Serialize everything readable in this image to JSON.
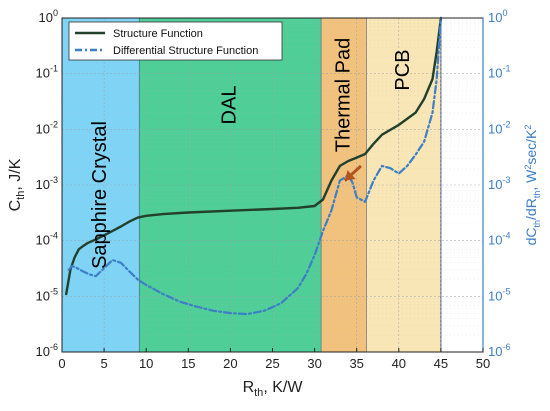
{
  "chart_data": {
    "type": "line",
    "xlabel_main": "R",
    "xlabel_sub": "th",
    "xlabel_rest": ", K/W",
    "ylabel_left_main": "C",
    "ylabel_left_sub": "th",
    "ylabel_left_rest": ", J/K",
    "ylabel_right_text": "dC_th/dR_th, W^2sec/K^2",
    "ylabel_right_parts": [
      "dC",
      "th",
      "/dR",
      "th",
      ", W",
      "2",
      "sec/K",
      "2"
    ],
    "xlim": [
      0,
      50
    ],
    "ylim_log": [
      -6,
      0
    ],
    "x_ticks": [
      "0",
      "5",
      "10",
      "15",
      "20",
      "25",
      "30",
      "35",
      "40",
      "45",
      "50"
    ],
    "y_ticks": [
      {
        "base": "10",
        "exp": "0"
      },
      {
        "base": "10",
        "exp": "-1"
      },
      {
        "base": "10",
        "exp": "-2"
      },
      {
        "base": "10",
        "exp": "-3"
      },
      {
        "base": "10",
        "exp": "-4"
      },
      {
        "base": "10",
        "exp": "-5"
      },
      {
        "base": "10",
        "exp": "-6"
      }
    ],
    "grid": true,
    "legend_position": "top-left",
    "regions": [
      {
        "label": "Sapphire Crystal",
        "x0": 0,
        "x1": 9.2,
        "color": "#7fd3f5",
        "label_pos": "vertical"
      },
      {
        "label": "DAL",
        "x0": 9.2,
        "x1": 30.8,
        "color": "#4fce98",
        "label_pos": "horizontal"
      },
      {
        "label": "Thermal Pad",
        "x0": 30.8,
        "x1": 36.2,
        "color": "#f0c27e",
        "label_pos": "vertical"
      },
      {
        "label": "PCB",
        "x0": 36.2,
        "x1": 45,
        "color": "#f8e6b6",
        "label_pos": "horizontal"
      }
    ],
    "series": [
      {
        "name": "Structure Function",
        "color": "#22402c",
        "style": "solid",
        "x": [
          0.5,
          1,
          1.5,
          2,
          2.5,
          3,
          4,
          5,
          6,
          7,
          8,
          9,
          10,
          12,
          15,
          20,
          25,
          28,
          30,
          31,
          32,
          33,
          34,
          35,
          36,
          37,
          38,
          40,
          42,
          43,
          44,
          44.5,
          45
        ],
        "y": [
          1.1e-05,
          3e-05,
          5e-05,
          7e-05,
          8e-05,
          9e-05,
          0.000105,
          0.000125,
          0.00015,
          0.00018,
          0.00022,
          0.00026,
          0.00028,
          0.0003,
          0.00032,
          0.000345,
          0.00037,
          0.00039,
          0.00042,
          0.00055,
          0.0012,
          0.0022,
          0.0027,
          0.0031,
          0.0036,
          0.0055,
          0.008,
          0.012,
          0.02,
          0.035,
          0.08,
          0.25,
          1.0
        ]
      },
      {
        "name": "Differential Structure Function",
        "color": "#3d7ec7",
        "style": "dashdot",
        "x": [
          0.8,
          1.2,
          1.8,
          2.5,
          3.2,
          4,
          5,
          6,
          7,
          8,
          9,
          10,
          12,
          14,
          16,
          18,
          20,
          22,
          24,
          26,
          28,
          29,
          30,
          31,
          32,
          33,
          34,
          34.5,
          35,
          36,
          37,
          38,
          39,
          40,
          41,
          42,
          43,
          44,
          44.5,
          45
        ],
        "y": [
          3e-05,
          3.5e-05,
          3.2e-05,
          2.8e-05,
          2.5e-05,
          2.3e-05,
          3.2e-05,
          4.5e-05,
          4e-05,
          2.8e-05,
          2e-05,
          1.6e-05,
          1.1e-05,
          8e-06,
          6.5e-06,
          5.5e-06,
          5e-06,
          4.8e-06,
          5.5e-06,
          7.5e-06,
          1.4e-05,
          2.5e-05,
          5.5e-05,
          0.00015,
          0.00035,
          0.0012,
          0.0015,
          0.0011,
          0.0006,
          0.0005,
          0.0012,
          0.0022,
          0.002,
          0.0016,
          0.0022,
          0.0035,
          0.006,
          0.02,
          0.08,
          1.0
        ]
      }
    ],
    "annotation": {
      "type": "arrow",
      "color": "#b3541e",
      "from": [
        35.5,
        0.0022
      ],
      "to": [
        33.6,
        0.0012
      ]
    }
  }
}
